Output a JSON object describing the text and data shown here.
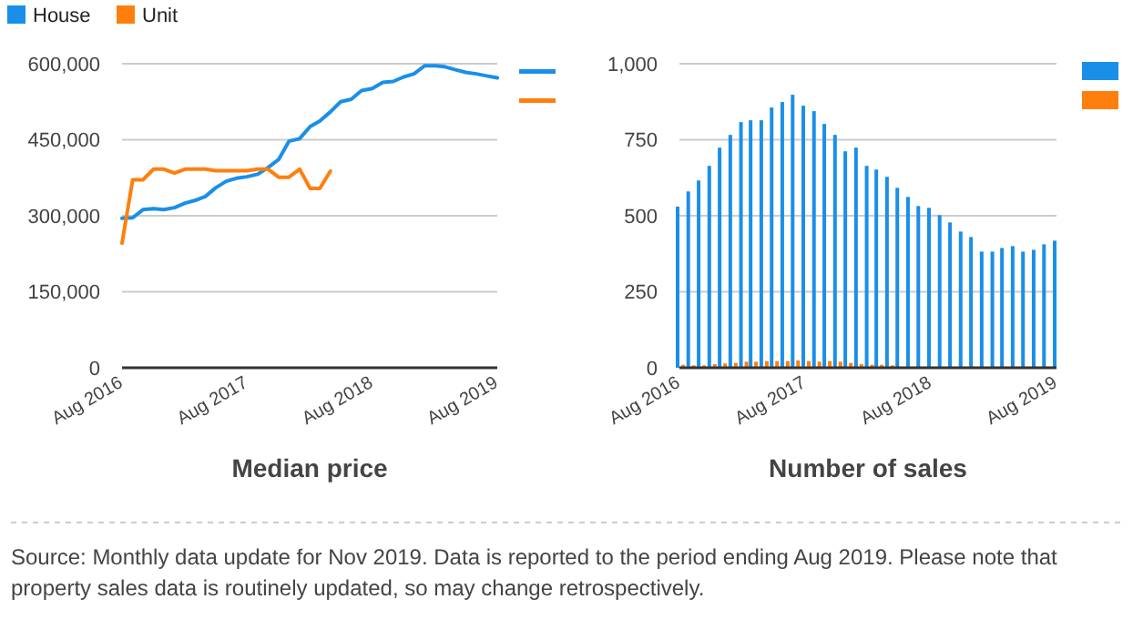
{
  "chart_data": [
    {
      "type": "line",
      "title": "Median price",
      "legend": "top left",
      "grid": "y",
      "xlim": [
        "2016-08",
        "2019-08"
      ],
      "xticks": [
        {
          "value": "2016-08",
          "label": "Aug 2016"
        },
        {
          "value": "2017-08",
          "label": "Aug 2017"
        },
        {
          "value": "2018-08",
          "label": "Aug 2018"
        },
        {
          "value": "2019-08",
          "label": "Aug 2019"
        }
      ],
      "ylim": [
        0,
        600000
      ],
      "yticks": [
        0,
        {
          "value": 150000,
          "label": "150,000"
        },
        {
          "value": 300000,
          "label": "300,000"
        },
        {
          "value": 450000,
          "label": "450,000"
        },
        {
          "value": 600000,
          "label": "600,000"
        }
      ],
      "x": [
        "2016-08",
        "2016-09",
        "2016-10",
        "2016-11",
        "2016-12",
        "2017-01",
        "2017-02",
        "2017-03",
        "2017-04",
        "2017-05",
        "2017-06",
        "2017-07",
        "2017-08",
        "2017-09",
        "2017-10",
        "2017-11",
        "2017-12",
        "2018-01",
        "2018-02",
        "2018-03",
        "2018-04",
        "2018-05",
        "2018-06",
        "2018-07",
        "2018-08",
        "2018-09",
        "2018-10",
        "2018-11",
        "2018-12",
        "2019-01",
        "2019-02",
        "2019-03",
        "2019-04",
        "2019-05",
        "2019-06",
        "2019-07",
        "2019-08"
      ],
      "series": [
        {
          "name": "House",
          "color": "#1a8fe8",
          "values": [
            295000,
            296000,
            312000,
            314000,
            312000,
            316000,
            325000,
            330000,
            338000,
            355000,
            368000,
            374000,
            377000,
            382000,
            395000,
            411000,
            447000,
            452000,
            476000,
            487000,
            505000,
            525000,
            530000,
            547000,
            551000,
            563000,
            565000,
            574000,
            580000,
            596000,
            596000,
            594000,
            588000,
            583000,
            580000,
            576000,
            572000
          ]
        },
        {
          "name": "Unit",
          "color": "#ff7f0e",
          "values": [
            246000,
            371000,
            371000,
            392000,
            392000,
            384000,
            392000,
            392000,
            392000,
            389000,
            389000,
            389000,
            389000,
            392000,
            392000,
            376000,
            376000,
            392000,
            354000,
            354000,
            388000,
            null,
            null,
            null,
            null,
            null,
            null,
            null,
            null,
            null,
            null,
            null,
            null,
            null,
            null,
            null,
            null
          ]
        }
      ],
      "annotations": [
        "Source: Monthly data update for Nov 2019. Data is reported to the period ending Aug 2019. Please note that property sales data is routinely updated, so may change retrospectively."
      ]
    },
    {
      "type": "bar",
      "title": "Number of sales",
      "legend": "right",
      "grid": "y",
      "xlim": [
        "2016-08",
        "2019-08"
      ],
      "xticks": [
        {
          "value": "2016-08",
          "label": "Aug 2016"
        },
        {
          "value": "2017-08",
          "label": "Aug 2017"
        },
        {
          "value": "2018-08",
          "label": "Aug 2018"
        },
        {
          "value": "2019-08",
          "label": "Aug 2019"
        }
      ],
      "ylim": [
        0,
        1000
      ],
      "yticks": [
        0,
        250,
        500,
        750,
        {
          "value": 1000,
          "label": "1,000"
        }
      ],
      "x": [
        "2016-08",
        "2016-09",
        "2016-10",
        "2016-11",
        "2016-12",
        "2017-01",
        "2017-02",
        "2017-03",
        "2017-04",
        "2017-05",
        "2017-06",
        "2017-07",
        "2017-08",
        "2017-09",
        "2017-10",
        "2017-11",
        "2017-12",
        "2018-01",
        "2018-02",
        "2018-03",
        "2018-04",
        "2018-05",
        "2018-06",
        "2018-07",
        "2018-08",
        "2018-09",
        "2018-10",
        "2018-11",
        "2018-12",
        "2019-01",
        "2019-02",
        "2019-03",
        "2019-04",
        "2019-05",
        "2019-06",
        "2019-07",
        "2019-08"
      ],
      "series": [
        {
          "color": "#1a8fe8",
          "values": [
            530,
            580,
            616,
            664,
            724,
            766,
            808,
            814,
            814,
            856,
            874,
            898,
            862,
            844,
            802,
            766,
            712,
            724,
            664,
            652,
            628,
            592,
            562,
            532,
            526,
            502,
            478,
            448,
            430,
            382,
            382,
            394,
            400,
            382,
            388,
            406,
            418
          ]
        },
        {
          "color": "#ff7f0e",
          "values": [
            10,
            8,
            8,
            12,
            14,
            16,
            20,
            20,
            22,
            22,
            22,
            24,
            22,
            20,
            22,
            20,
            16,
            12,
            10,
            10,
            8,
            null,
            null,
            null,
            null,
            null,
            null,
            null,
            null,
            null,
            null,
            null,
            null,
            null,
            null,
            null,
            null
          ]
        }
      ]
    }
  ]
}
